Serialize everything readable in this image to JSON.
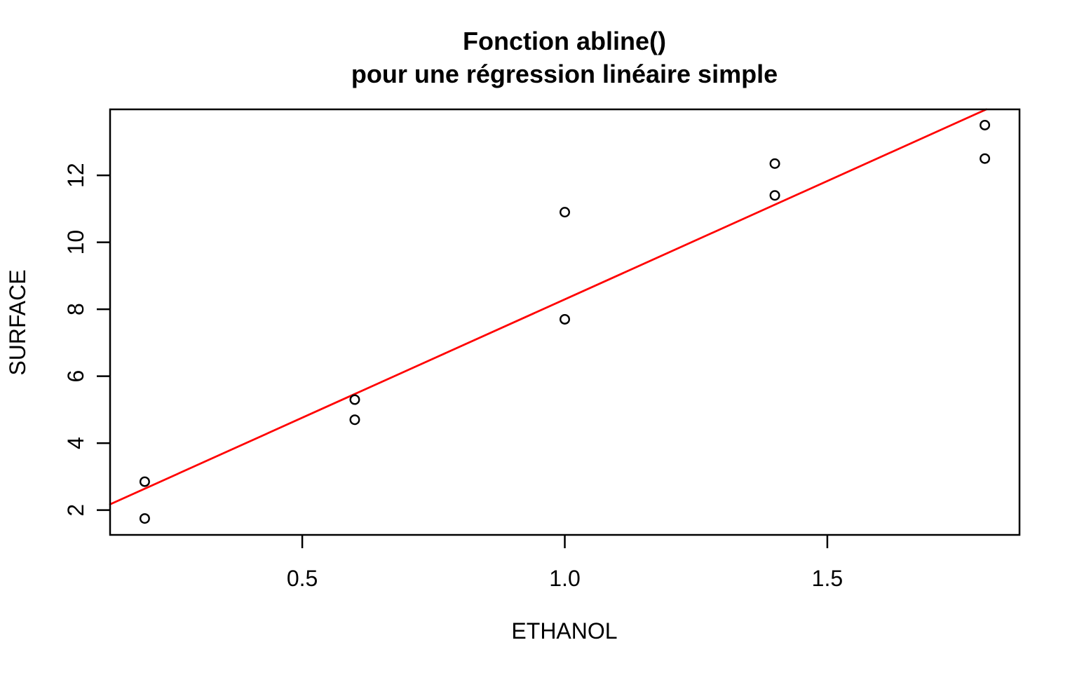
{
  "figure": {
    "background_color": "#ffffff",
    "foreground_color": "#000000"
  },
  "chart_data": {
    "type": "scatter",
    "title": "Fonction abline()",
    "subtitle": "pour une régression linéaire simple",
    "xlabel": "ETHANOL",
    "ylabel": "SURFACE",
    "x": [
      0.2,
      0.2,
      0.6,
      0.6,
      1.0,
      1.0,
      1.4,
      1.4,
      1.8,
      1.8
    ],
    "y": [
      2.85,
      1.75,
      5.3,
      4.7,
      10.9,
      7.7,
      12.35,
      11.4,
      13.5,
      12.5
    ],
    "xlim": [
      0.134,
      1.866
    ],
    "ylim": [
      1.26,
      13.97
    ],
    "xticks": [
      0.5,
      1.0,
      1.5
    ],
    "xtick_labels": [
      "0.5",
      "1.0",
      "1.5"
    ],
    "yticks": [
      2,
      4,
      6,
      8,
      10,
      12
    ],
    "ytick_labels": [
      "2",
      "4",
      "6",
      "8",
      "10",
      "12"
    ],
    "regression_line": {
      "intercept": 1.226,
      "slope": 7.069,
      "color": "#ff0000"
    },
    "marker": {
      "shape": "open-circle",
      "color": "#000000"
    },
    "grid": false,
    "legend": null
  }
}
